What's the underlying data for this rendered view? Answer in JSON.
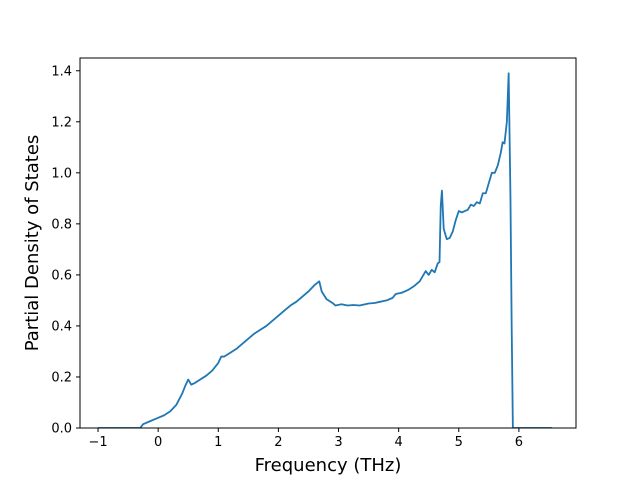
{
  "chart_data": {
    "type": "line",
    "title": "",
    "xlabel": "Frequency (THz)",
    "ylabel": "Partial Density of States",
    "xlim": [
      -1.3,
      6.95
    ],
    "ylim": [
      0.0,
      1.45
    ],
    "xticks": [
      -1,
      0,
      1,
      2,
      3,
      4,
      5,
      6
    ],
    "xtick_labels": [
      "−1",
      "0",
      "1",
      "2",
      "3",
      "4",
      "5",
      "6"
    ],
    "yticks": [
      0.0,
      0.2,
      0.4,
      0.6,
      0.8,
      1.0,
      1.2,
      1.4
    ],
    "ytick_labels": [
      "0.0",
      "0.2",
      "0.4",
      "0.6",
      "0.8",
      "1.0",
      "1.2",
      "1.4"
    ],
    "grid": false,
    "legend": "none",
    "series": [
      {
        "color": "#1f77b4",
        "x": [
          -1.0,
          -0.3,
          -0.25,
          -0.15,
          -0.05,
          0.0,
          0.1,
          0.2,
          0.3,
          0.4,
          0.45,
          0.5,
          0.55,
          0.6,
          0.7,
          0.8,
          0.9,
          1.0,
          1.05,
          1.1,
          1.2,
          1.3,
          1.4,
          1.5,
          1.6,
          1.7,
          1.8,
          1.9,
          2.0,
          2.1,
          2.2,
          2.3,
          2.4,
          2.5,
          2.6,
          2.68,
          2.72,
          2.8,
          2.9,
          2.95,
          3.05,
          3.15,
          3.25,
          3.35,
          3.5,
          3.6,
          3.7,
          3.8,
          3.9,
          3.95,
          4.05,
          4.15,
          4.25,
          4.35,
          4.4,
          4.45,
          4.5,
          4.55,
          4.6,
          4.65,
          4.68,
          4.7,
          4.72,
          4.75,
          4.8,
          4.85,
          4.9,
          4.95,
          5.0,
          5.05,
          5.1,
          5.15,
          5.2,
          5.25,
          5.3,
          5.35,
          5.4,
          5.45,
          5.5,
          5.55,
          5.6,
          5.65,
          5.7,
          5.73,
          5.76,
          5.8,
          5.83,
          5.86,
          5.88,
          5.9,
          5.92,
          5.95,
          6.0,
          6.2,
          6.55
        ],
        "y": [
          0.0,
          0.0,
          0.015,
          0.025,
          0.035,
          0.04,
          0.05,
          0.065,
          0.09,
          0.135,
          0.165,
          0.19,
          0.17,
          0.175,
          0.19,
          0.205,
          0.225,
          0.255,
          0.28,
          0.28,
          0.295,
          0.31,
          0.33,
          0.35,
          0.37,
          0.385,
          0.4,
          0.42,
          0.44,
          0.46,
          0.48,
          0.495,
          0.515,
          0.535,
          0.56,
          0.575,
          0.535,
          0.505,
          0.49,
          0.48,
          0.485,
          0.48,
          0.482,
          0.48,
          0.488,
          0.49,
          0.495,
          0.5,
          0.51,
          0.525,
          0.53,
          0.54,
          0.555,
          0.575,
          0.595,
          0.615,
          0.6,
          0.62,
          0.61,
          0.645,
          0.65,
          0.87,
          0.93,
          0.78,
          0.74,
          0.745,
          0.77,
          0.815,
          0.85,
          0.845,
          0.85,
          0.855,
          0.875,
          0.87,
          0.885,
          0.88,
          0.92,
          0.92,
          0.96,
          1.0,
          1.0,
          1.03,
          1.08,
          1.12,
          1.115,
          1.2,
          1.39,
          0.9,
          0.4,
          0.0,
          0.0,
          0.0,
          0.0,
          0.0,
          0.0
        ]
      }
    ]
  }
}
